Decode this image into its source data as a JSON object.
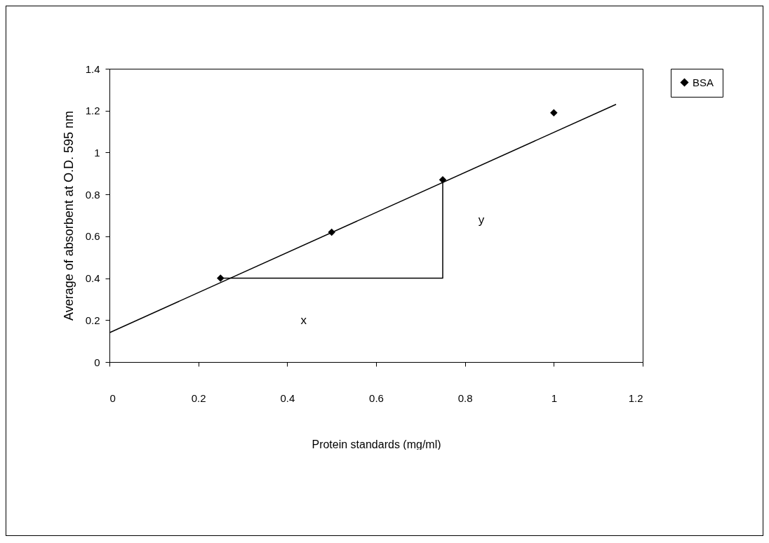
{
  "chart_data": {
    "type": "scatter",
    "xlabel": "Protein standards (mg/ml)",
    "ylabel": "Average of absorbent at O.D. 595 nm",
    "xlim": [
      0,
      1.2
    ],
    "xticks": [
      0,
      0.2,
      0.4,
      0.6,
      0.8,
      1,
      1.2
    ],
    "ylim": [
      0,
      1.4
    ],
    "yticks": [
      0,
      0.2,
      0.4,
      0.6,
      0.8,
      1,
      1.2,
      1.4
    ],
    "grid": false,
    "legend": "right",
    "series": [
      {
        "name": "BSA",
        "color": "#000000",
        "marker": "diamond",
        "x": [
          0.25,
          0.5,
          0.75,
          1
        ],
        "values": [
          0.4,
          0.62,
          0.87,
          1.19
        ]
      },
      {
        "type": "line",
        "color": "#000000",
        "line_style": "solid",
        "x": [
          0,
          1.14
        ],
        "values": [
          0.14,
          1.23
        ]
      },
      {
        "type": "line",
        "color": "#000000",
        "line_style": "solid",
        "x": [
          0.25,
          0.75,
          0.75
        ],
        "values": [
          0.4,
          0.4,
          0.87
        ]
      }
    ],
    "annotations": [
      "x",
      "y"
    ]
  }
}
